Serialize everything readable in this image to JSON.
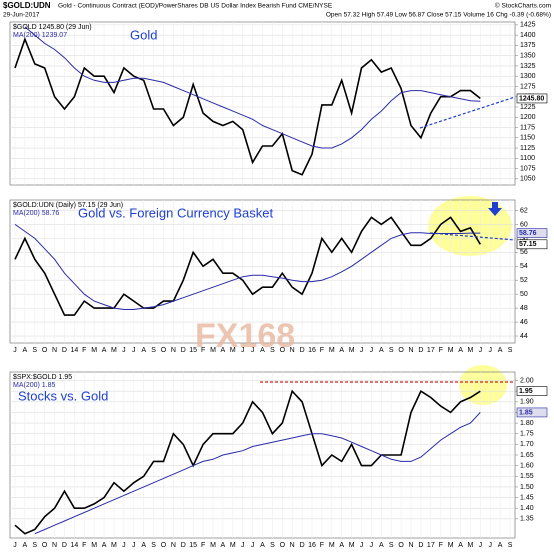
{
  "header": {
    "title": "$GOLD:UDN",
    "subtitle": "Gold - Continuous Contract (EOD)/PowerShares DB US Dollar Index Bearish Fund CME/NYSE",
    "credit": "© StockCharts.com",
    "date": "29-Jun-2017",
    "quote": "Open 57.32 High 57.49 Low 56.87 Close 57.15 Volume 16 Chg -0.39 (-0.68%)",
    "watermark": "FX168"
  },
  "chart_data": [
    {
      "type": "line",
      "annotation": "Gold",
      "legend": [
        "$GOLD 1245.80 (29 Jun)",
        "MA(200) 1239.07"
      ],
      "ylim": [
        1035,
        1432
      ],
      "yticks": [
        1050,
        1075,
        1100,
        1125,
        1150,
        1175,
        1200,
        1225,
        1250,
        1275,
        1300,
        1325,
        1350,
        1375,
        1400,
        1425
      ],
      "grid": true,
      "series": [
        {
          "name": "$GOLD",
          "color": "#000000",
          "last_label": "1245.80",
          "values": [
            1320,
            1390,
            1330,
            1320,
            1250,
            1220,
            1250,
            1320,
            1300,
            1300,
            1260,
            1320,
            1300,
            1290,
            1220,
            1220,
            1180,
            1200,
            1280,
            1210,
            1190,
            1180,
            1190,
            1170,
            1090,
            1130,
            1130,
            1160,
            1070,
            1060,
            1110,
            1230,
            1230,
            1290,
            1210,
            1320,
            1340,
            1310,
            1320,
            1270,
            1180,
            1150,
            1210,
            1250,
            1250,
            1265,
            1265,
            1245.8,
            null,
            null,
            null
          ]
        },
        {
          "name": "MA(200)",
          "color": "#2a2aa8",
          "values": [
            null,
            1420,
            1400,
            1380,
            1365,
            1345,
            1320,
            1300,
            1290,
            1285,
            1285,
            1290,
            1295,
            1295,
            1290,
            1285,
            1275,
            1265,
            1255,
            1245,
            1235,
            1225,
            1215,
            1205,
            1195,
            1180,
            1170,
            1160,
            1150,
            1140,
            1130,
            1125,
            1125,
            1135,
            1150,
            1170,
            1195,
            1215,
            1240,
            1260,
            1265,
            1265,
            1260,
            1255,
            1250,
            1245,
            1240,
            1239.07,
            null,
            null,
            null
          ]
        }
      ]
    },
    {
      "type": "line",
      "annotation": "Gold vs. Foreign Currency Basket",
      "legend": [
        "$GOLD:UDN (Daily) 57.15 (29 Jun)",
        "MA(200) 58.76"
      ],
      "categories": [
        "J",
        "A",
        "S",
        "O",
        "N",
        "D",
        "14",
        "F",
        "M",
        "A",
        "M",
        "J",
        "J",
        "A",
        "S",
        "O",
        "N",
        "D",
        "15",
        "F",
        "M",
        "A",
        "M",
        "J",
        "J",
        "A",
        "S",
        "O",
        "N",
        "D",
        "16",
        "F",
        "M",
        "A",
        "M",
        "J",
        "J",
        "A",
        "S",
        "O",
        "N",
        "D",
        "17",
        "F",
        "M",
        "A",
        "M",
        "J",
        "J",
        "A",
        "S"
      ],
      "ylim": [
        43,
        63.5
      ],
      "yticks": [
        44,
        46,
        48,
        50,
        52,
        54,
        56,
        58,
        60,
        62
      ],
      "grid": true,
      "series": [
        {
          "name": "$GOLD:UDN",
          "color": "#000000",
          "last_label": "57.15",
          "values": [
            55,
            58,
            55,
            53,
            50,
            47,
            47,
            49,
            48,
            48,
            48,
            50,
            49,
            48,
            48,
            49,
            49,
            52,
            56,
            54,
            55,
            53,
            53,
            52,
            50,
            51,
            51,
            53,
            51,
            50,
            53,
            58,
            56,
            58,
            56,
            59,
            61,
            60,
            61,
            59,
            57,
            57,
            58,
            60,
            61,
            59,
            59.5,
            57.15,
            null,
            null,
            null
          ]
        },
        {
          "name": "MA(200)",
          "color": "#2a2aa8",
          "last_label": "58.76",
          "values": [
            60,
            59,
            58,
            56.5,
            55,
            53,
            51.5,
            50,
            49,
            48.5,
            48,
            47.8,
            47.8,
            48,
            48.2,
            48.5,
            49,
            49.5,
            50,
            50.5,
            51,
            51.5,
            52,
            52.5,
            52.7,
            52.7,
            52.5,
            52.3,
            52,
            51.8,
            51.8,
            52,
            52.5,
            53.2,
            54,
            55,
            56,
            57,
            58,
            58.5,
            58.8,
            58.8,
            58.7,
            58.7,
            58.7,
            58.7,
            58.75,
            58.76,
            null,
            null,
            null
          ]
        }
      ]
    },
    {
      "type": "line",
      "annotation": "Stocks vs. Gold",
      "legend": [
        "$SPX:$GOLD 1.95",
        "MA(200) 1.85"
      ],
      "categories": [
        "J",
        "A",
        "S",
        "O",
        "N",
        "D",
        "14",
        "F",
        "M",
        "A",
        "M",
        "J",
        "J",
        "A",
        "S",
        "O",
        "N",
        "D",
        "15",
        "F",
        "M",
        "A",
        "M",
        "J",
        "J",
        "A",
        "S",
        "O",
        "N",
        "D",
        "16",
        "F",
        "M",
        "A",
        "M",
        "J",
        "J",
        "A",
        "S",
        "O",
        "N",
        "D",
        "17",
        "F",
        "M",
        "A",
        "M",
        "J",
        "J",
        "A",
        "S"
      ],
      "ylim": [
        1.26,
        2.04
      ],
      "yticks": [
        1.35,
        {
          "value": 1.4,
          "label": "1.40"
        },
        1.45,
        {
          "value": 1.5,
          "label": "1.50"
        },
        1.55,
        {
          "value": 1.6,
          "label": "1.60"
        },
        1.65,
        {
          "value": 1.7,
          "label": "1.70"
        },
        1.75,
        {
          "value": 1.8,
          "label": "1.80"
        },
        1.85,
        {
          "value": 1.9,
          "label": "1.90"
        },
        1.95,
        {
          "value": 2,
          "label": "2.00"
        }
      ],
      "grid": true,
      "series": [
        {
          "name": "$SPX:$GOLD",
          "color": "#000000",
          "last_label": "1.95",
          "values": [
            1.32,
            1.28,
            1.3,
            1.36,
            1.4,
            1.48,
            1.4,
            1.4,
            1.42,
            1.45,
            1.52,
            1.48,
            1.52,
            1.55,
            1.62,
            1.62,
            1.75,
            1.7,
            1.6,
            1.7,
            1.75,
            1.75,
            1.75,
            1.8,
            1.9,
            1.85,
            1.75,
            1.8,
            1.95,
            1.9,
            1.75,
            1.6,
            1.65,
            1.62,
            1.7,
            1.6,
            1.6,
            1.65,
            1.65,
            1.65,
            1.85,
            1.95,
            1.92,
            1.88,
            1.85,
            1.9,
            1.92,
            1.95,
            null,
            null,
            null
          ]
        },
        {
          "name": "MA(200)",
          "color": "#2a2aa8",
          "last_label": "1.85",
          "values": [
            null,
            null,
            1.28,
            1.3,
            1.32,
            1.34,
            1.36,
            1.38,
            1.4,
            1.42,
            1.44,
            1.46,
            1.48,
            1.5,
            1.52,
            1.54,
            1.56,
            1.58,
            1.6,
            1.62,
            1.63,
            1.65,
            1.66,
            1.67,
            1.69,
            1.7,
            1.71,
            1.72,
            1.73,
            1.74,
            1.75,
            1.75,
            1.74,
            1.73,
            1.71,
            1.69,
            1.67,
            1.65,
            1.63,
            1.62,
            1.62,
            1.64,
            1.68,
            1.72,
            1.75,
            1.78,
            1.8,
            1.85,
            null,
            null,
            null
          ]
        }
      ]
    }
  ]
}
